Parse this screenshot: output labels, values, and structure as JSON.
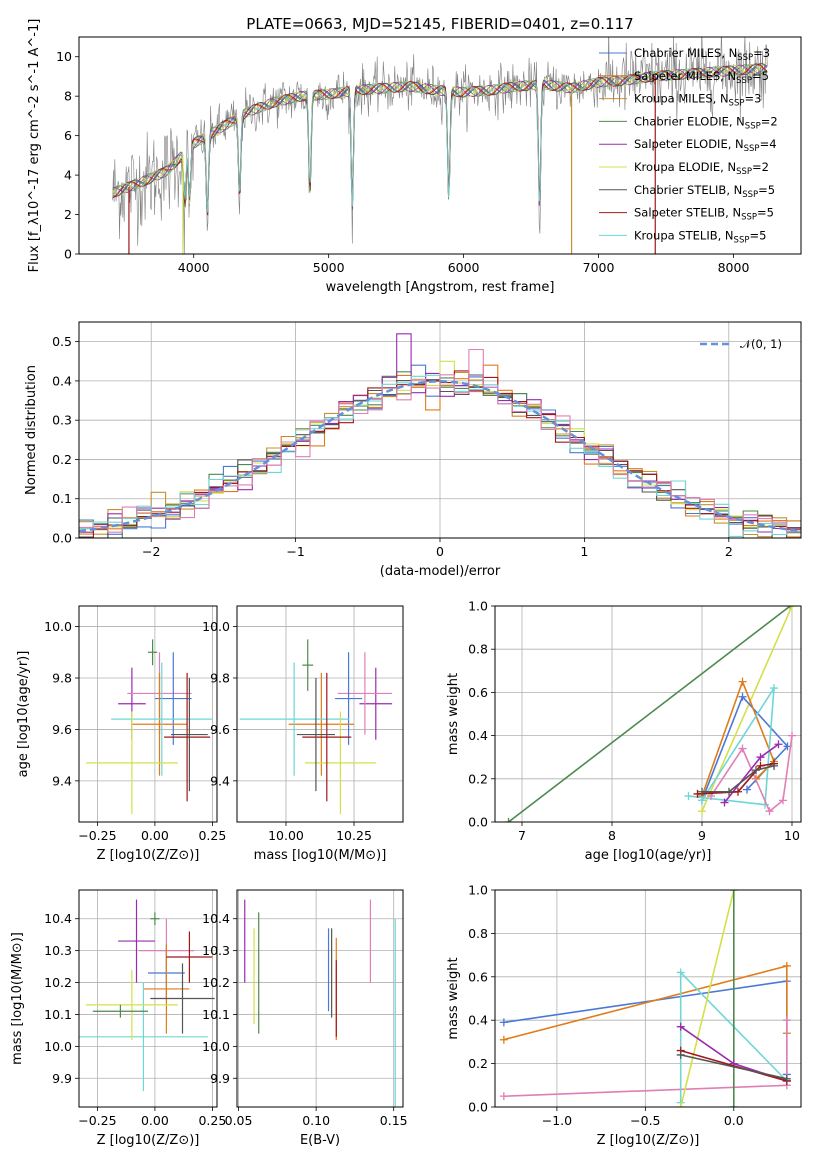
{
  "title": "PLATE=0663, MJD=52145, FIBERID=0401, z=0.117",
  "colors": {
    "Chabrier MILES": "#4a78d6",
    "Salpeter MILES": "#e07b1a",
    "Kroupa MILES": "#c8902e",
    "Chabrier ELODIE": "#4d8a4d",
    "Salpeter ELODIE": "#9a2bb0",
    "Kroupa ELODIE": "#d4e04a",
    "Chabrier STELIB": "#555555",
    "Salpeter STELIB": "#a01818",
    "Kroupa STELIB": "#6fd6d6",
    "spectrum": "#808080",
    "normal": "#6490dc"
  },
  "chart_data": [
    {
      "id": "spectrum",
      "type": "line",
      "xlabel": "wavelength [Angstrom, rest frame]",
      "ylabel": "Flux [f_λ10^-17 erg cm^-2 s^-1 A^-1]",
      "xlim": [
        3150,
        8500
      ],
      "ylim": [
        0,
        11
      ],
      "xticks": [
        "4000",
        "5000",
        "6000",
        "7000",
        "8000"
      ],
      "yticks": [
        "0",
        "2",
        "4",
        "6",
        "8",
        "10"
      ],
      "grid": false,
      "legend_position": "top-right",
      "legend": [
        {
          "label": "Chabrier MILES, N",
          "sub": "SSP",
          "tail": "=3"
        },
        {
          "label": "Salpeter MILES, N",
          "sub": "SSP",
          "tail": "=5"
        },
        {
          "label": "Kroupa MILES, N",
          "sub": "SSP",
          "tail": "=3"
        },
        {
          "label": "Chabrier ELODIE, N",
          "sub": "SSP",
          "tail": "=2"
        },
        {
          "label": "Salpeter ELODIE, N",
          "sub": "SSP",
          "tail": "=4"
        },
        {
          "label": "Kroupa ELODIE, N",
          "sub": "SSP",
          "tail": "=2"
        },
        {
          "label": "Chabrier STELIB, N",
          "sub": "SSP",
          "tail": "=5"
        },
        {
          "label": "Salpeter STELIB, N",
          "sub": "SSP",
          "tail": "=5"
        },
        {
          "label": "Kroupa STELIB, N",
          "sub": "SSP",
          "tail": "=5"
        }
      ],
      "continuum": {
        "x": [
          3400,
          3600,
          3800,
          4000,
          4200,
          4400,
          4600,
          4800,
          5000,
          5200,
          5400,
          5600,
          5800,
          6000,
          6200,
          6400,
          6600,
          6800,
          7000,
          7200,
          7400,
          7600,
          7800,
          8000,
          8200
        ],
        "y": [
          3.1,
          3.6,
          4.2,
          5.6,
          6.4,
          7.2,
          7.7,
          8.0,
          8.1,
          8.3,
          8.4,
          8.5,
          8.3,
          8.2,
          8.3,
          8.5,
          8.6,
          8.4,
          8.7,
          8.8,
          9.0,
          9.1,
          9.2,
          9.3,
          9.4
        ]
      },
      "dips": [
        [
          3934,
          3.0
        ],
        [
          3969,
          3.0
        ],
        [
          4101,
          4.5
        ],
        [
          4340,
          4.5
        ],
        [
          4861,
          5.5
        ],
        [
          5175,
          6.5
        ],
        [
          5890,
          6.0
        ],
        [
          6563,
          7.0
        ]
      ]
    },
    {
      "id": "histogram",
      "type": "line",
      "xlabel": "(data-model)/error",
      "ylabel": "Normed distribution",
      "xlim": [
        -2.5,
        2.5
      ],
      "ylim": [
        0,
        0.55
      ],
      "xticks": [
        "−2",
        "−1",
        "0",
        "1",
        "2"
      ],
      "yticks": [
        "0.0",
        "0.1",
        "0.2",
        "0.3",
        "0.4",
        "0.5"
      ],
      "grid": true,
      "legend_position": "top-right",
      "legend_label": "𝒩(0, 1)",
      "bin_width": 0.1,
      "reference_curve": "normal pdf, mean 0, sigma 1",
      "highlight_bars": [
        [
          -0.3,
          0.52,
          "#9a2bb0"
        ],
        [
          -0.2,
          0.44,
          "#4a78d6"
        ],
        [
          0.0,
          0.45,
          "#d4e04a"
        ],
        [
          0.2,
          0.48,
          "#e07fb5"
        ],
        [
          0.3,
          0.44,
          "#e07b1a"
        ]
      ]
    },
    {
      "id": "age-vs-Z",
      "type": "scatter",
      "xlabel": "Z [log10(Z/Z⊙)]",
      "ylabel": "age [log10(age/yr)]",
      "xlim": [
        -0.33,
        0.27
      ],
      "ylim": [
        9.24,
        10.08
      ],
      "xticks": [
        "−0.25",
        "0.00",
        "0.25"
      ],
      "yticks": [
        "9.4",
        "9.6",
        "9.8",
        "10.0"
      ],
      "grid": true,
      "points": [
        {
          "x": -0.1,
          "y": 9.7,
          "xerr": 0.06,
          "yerr": 0.14,
          "color": "#9a2bb0"
        },
        {
          "x": 0.02,
          "y": 9.74,
          "xerr": 0.14,
          "yerr": 0.16,
          "color": "#e07fb5"
        },
        {
          "x": 0.08,
          "y": 9.72,
          "xerr": 0.08,
          "yerr": 0.18,
          "color": "#4a78d6"
        },
        {
          "x": 0.02,
          "y": 9.62,
          "xerr": 0.12,
          "yerr": 0.2,
          "color": "#e07b1a"
        },
        {
          "x": 0.03,
          "y": 9.64,
          "xerr": 0.22,
          "yerr": 0.22,
          "color": "#6fd6d6"
        },
        {
          "x": -0.1,
          "y": 9.47,
          "xerr": 0.2,
          "yerr": 0.2,
          "color": "#d4e04a"
        },
        {
          "x": 0.14,
          "y": 9.57,
          "xerr": 0.1,
          "yerr": 0.25,
          "color": "#a01818"
        },
        {
          "x": 0.15,
          "y": 9.58,
          "xerr": 0.08,
          "yerr": 0.22,
          "color": "#555555"
        },
        {
          "x": -0.01,
          "y": 9.9,
          "xerr": 0.02,
          "yerr": 0.05,
          "color": "#4d8a4d"
        }
      ]
    },
    {
      "id": "age-vs-mass",
      "type": "scatter",
      "xlabel": "mass [log10(M/M⊙)]",
      "ylabel": "",
      "xlim": [
        9.82,
        10.43
      ],
      "ylim": [
        9.24,
        10.08
      ],
      "xticks": [
        "10.00",
        "10.25"
      ],
      "yticks": [
        "9.4",
        "9.6",
        "9.8",
        "10.0"
      ],
      "grid": true,
      "points": [
        {
          "x": 10.33,
          "y": 9.7,
          "xerr": 0.06,
          "yerr": 0.14,
          "color": "#9a2bb0"
        },
        {
          "x": 10.29,
          "y": 9.74,
          "xerr": 0.1,
          "yerr": 0.16,
          "color": "#e07fb5"
        },
        {
          "x": 10.23,
          "y": 9.72,
          "xerr": 0.05,
          "yerr": 0.18,
          "color": "#4a78d6"
        },
        {
          "x": 10.13,
          "y": 9.62,
          "xerr": 0.12,
          "yerr": 0.2,
          "color": "#e07b1a"
        },
        {
          "x": 10.03,
          "y": 9.64,
          "xerr": 0.2,
          "yerr": 0.22,
          "color": "#6fd6d6"
        },
        {
          "x": 10.2,
          "y": 9.47,
          "xerr": 0.13,
          "yerr": 0.2,
          "color": "#d4e04a"
        },
        {
          "x": 10.15,
          "y": 9.57,
          "xerr": 0.09,
          "yerr": 0.25,
          "color": "#a01818"
        },
        {
          "x": 10.11,
          "y": 9.58,
          "xerr": 0.07,
          "yerr": 0.22,
          "color": "#555555"
        },
        {
          "x": 10.08,
          "y": 9.85,
          "xerr": 0.02,
          "yerr": 0.1,
          "color": "#4d8a4d"
        }
      ]
    },
    {
      "id": "weight-vs-age",
      "type": "line",
      "xlabel": "age [log10(age/yr)]",
      "ylabel": "mass weight",
      "xlim": [
        6.7,
        10.1
      ],
      "ylim": [
        0,
        1
      ],
      "xticks": [
        "7",
        "8",
        "9",
        "10"
      ],
      "yticks": [
        "0.0",
        "0.2",
        "0.4",
        "0.6",
        "0.8",
        "1.0"
      ],
      "grid": true,
      "series": [
        {
          "color": "#4d8a4d",
          "x": [
            6.85,
            9.98
          ],
          "y": [
            0.0,
            1.0
          ]
        },
        {
          "color": "#d4e04a",
          "x": [
            9.0,
            10.0
          ],
          "y": [
            0.05,
            1.0
          ]
        },
        {
          "color": "#4a78d6",
          "x": [
            9.0,
            9.45,
            9.95,
            9.5
          ],
          "y": [
            0.1,
            0.58,
            0.35,
            0.15
          ]
        },
        {
          "color": "#e07b1a",
          "x": [
            9.0,
            9.45,
            9.8,
            9.6
          ],
          "y": [
            0.12,
            0.65,
            0.28,
            0.2
          ]
        },
        {
          "color": "#6fd6d6",
          "x": [
            8.85,
            9.7,
            9.8,
            9.0
          ],
          "y": [
            0.12,
            0.08,
            0.62,
            0.1
          ]
        },
        {
          "color": "#e07fb5",
          "x": [
            9.1,
            9.45,
            9.75,
            9.9,
            10.0
          ],
          "y": [
            0.12,
            0.34,
            0.05,
            0.1,
            0.4
          ]
        },
        {
          "color": "#9a2bb0",
          "x": [
            9.25,
            9.65,
            9.85
          ],
          "y": [
            0.09,
            0.3,
            0.36
          ]
        },
        {
          "color": "#a01818",
          "x": [
            8.95,
            9.4,
            9.65,
            9.8
          ],
          "y": [
            0.13,
            0.14,
            0.26,
            0.27
          ]
        },
        {
          "color": "#555555",
          "x": [
            9.0,
            9.3,
            9.6,
            9.8
          ],
          "y": [
            0.14,
            0.14,
            0.24,
            0.26
          ]
        }
      ]
    },
    {
      "id": "mass-vs-Z",
      "type": "scatter",
      "xlabel": "Z [log10(Z/Z⊙)]",
      "ylabel": "mass [log10(M/M⊙)]",
      "xlim": [
        -0.33,
        0.27
      ],
      "ylim": [
        9.81,
        10.49
      ],
      "xticks": [
        "−0.25",
        "0.00",
        "0.25"
      ],
      "yticks": [
        "9.9",
        "10.0",
        "10.1",
        "10.2",
        "10.3",
        "10.4"
      ],
      "grid": true,
      "points": [
        {
          "x": -0.08,
          "y": 10.33,
          "xerr": 0.08,
          "yerr": 0.13,
          "color": "#9a2bb0"
        },
        {
          "x": 0.05,
          "y": 10.3,
          "xerr": 0.12,
          "yerr": 0.1,
          "color": "#e07fb5"
        },
        {
          "x": 0.05,
          "y": 10.23,
          "xerr": 0.08,
          "yerr": 0.08,
          "color": "#4a78d6"
        },
        {
          "x": 0.05,
          "y": 10.18,
          "xerr": 0.1,
          "yerr": 0.14,
          "color": "#e07b1a"
        },
        {
          "x": -0.05,
          "y": 10.03,
          "xerr": 0.28,
          "yerr": 0.17,
          "color": "#6fd6d6"
        },
        {
          "x": -0.1,
          "y": 10.13,
          "xerr": 0.2,
          "yerr": 0.11,
          "color": "#d4e04a"
        },
        {
          "x": 0.15,
          "y": 10.28,
          "xerr": 0.1,
          "yerr": 0.08,
          "color": "#a01818"
        },
        {
          "x": 0.12,
          "y": 10.15,
          "xerr": 0.14,
          "yerr": 0.11,
          "color": "#555555"
        },
        {
          "x": -0.15,
          "y": 10.11,
          "xerr": 0.12,
          "yerr": 0.02,
          "color": "#4d8a4d"
        },
        {
          "x": 0.0,
          "y": 10.4,
          "xerr": 0.02,
          "yerr": 0.02,
          "color": "#4d8a4d"
        }
      ]
    },
    {
      "id": "mass-vs-ebv",
      "type": "scatter",
      "xlabel": "E(B-V)",
      "ylabel": "",
      "xlim": [
        0.049,
        0.156
      ],
      "ylim": [
        9.81,
        10.49
      ],
      "xticks": [
        "0.05",
        "0.10",
        "0.15"
      ],
      "yticks": [
        "9.9",
        "10.0",
        "10.1",
        "10.2",
        "10.3",
        "10.4"
      ],
      "grid": true,
      "points": [
        {
          "x": 0.054,
          "y": 10.33,
          "xerr": 0,
          "yerr": 0.13,
          "color": "#9a2bb0"
        },
        {
          "x": 0.06,
          "y": 10.22,
          "xerr": 0,
          "yerr": 0.15,
          "color": "#d4e04a"
        },
        {
          "x": 0.063,
          "y": 10.23,
          "xerr": 0,
          "yerr": 0.19,
          "color": "#4d8a4d"
        },
        {
          "x": 0.108,
          "y": 10.24,
          "xerr": 0,
          "yerr": 0.13,
          "color": "#4a78d6"
        },
        {
          "x": 0.11,
          "y": 10.23,
          "xerr": 0,
          "yerr": 0.14,
          "color": "#555555"
        },
        {
          "x": 0.113,
          "y": 10.18,
          "xerr": 0,
          "yerr": 0.16,
          "color": "#e07b1a"
        },
        {
          "x": 0.113,
          "y": 10.15,
          "xerr": 0,
          "yerr": 0.12,
          "color": "#a01818"
        },
        {
          "x": 0.135,
          "y": 10.33,
          "xerr": 0,
          "yerr": 0.13,
          "color": "#e07fb5"
        },
        {
          "x": 0.151,
          "y": 10.1,
          "xerr": 0,
          "yerr": 0.3,
          "color": "#6fd6d6"
        }
      ]
    },
    {
      "id": "weight-vs-Z",
      "type": "line",
      "xlabel": "Z [log10(Z/Z⊙)]",
      "ylabel": "mass weight",
      "xlim": [
        -1.35,
        0.38
      ],
      "ylim": [
        0,
        1
      ],
      "xticks": [
        "−1.0",
        "−0.5",
        "0.0"
      ],
      "yticks": [
        "0.0",
        "0.2",
        "0.4",
        "0.6",
        "0.8",
        "1.0"
      ],
      "grid": true,
      "series": [
        {
          "color": "#4a78d6",
          "x": [
            -1.3,
            0.3,
            0.3
          ],
          "y": [
            0.39,
            0.58,
            0.15
          ]
        },
        {
          "color": "#e07b1a",
          "x": [
            -1.3,
            0.3,
            0.3
          ],
          "y": [
            0.31,
            0.65,
            0.34
          ]
        },
        {
          "color": "#e07fb5",
          "x": [
            -1.3,
            0.3,
            0.3
          ],
          "y": [
            0.05,
            0.1,
            0.4
          ]
        },
        {
          "color": "#6fd6d6",
          "x": [
            -0.3,
            -0.3,
            0.3
          ],
          "y": [
            0.02,
            0.62,
            0.12
          ]
        },
        {
          "color": "#d4e04a",
          "x": [
            -0.3,
            0.0
          ],
          "y": [
            0.0,
            1.0
          ]
        },
        {
          "color": "#4d8a4d",
          "x": [
            0.0,
            0.0
          ],
          "y": [
            0.0,
            1.0
          ]
        },
        {
          "color": "#9a2bb0",
          "x": [
            -0.3,
            0.0,
            0.3
          ],
          "y": [
            0.37,
            0.2,
            0.12
          ]
        },
        {
          "color": "#a01818",
          "x": [
            -0.3,
            0.3
          ],
          "y": [
            0.26,
            0.12
          ]
        },
        {
          "color": "#555555",
          "x": [
            -0.3,
            0.3
          ],
          "y": [
            0.24,
            0.13
          ]
        }
      ]
    }
  ]
}
